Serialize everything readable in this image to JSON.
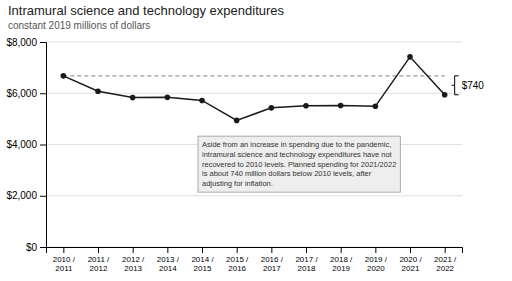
{
  "chart_data": {
    "type": "line",
    "title": "Intramural science and technology expenditures",
    "subtitle": "constant 2019 millions of dollars",
    "categories": [
      "2010 /\n2011",
      "2011 /\n2012",
      "2012 /\n2013",
      "2013 /\n2014",
      "2014 /\n2015",
      "2015 /\n2016",
      "2016 /\n2017",
      "2017 /\n2018",
      "2018 /\n2019",
      "2019 /\n2020",
      "2020 /\n2021",
      "2021 /\n2022"
    ],
    "values": [
      6680,
      6080,
      5830,
      5840,
      5720,
      4940,
      5430,
      5510,
      5520,
      5490,
      7420,
      5940
    ],
    "color": "#1a1a1a",
    "marker": "circle",
    "reference_lines": [
      {
        "value": 6680,
        "color": "#999999",
        "line_style": "dashed"
      }
    ],
    "brace_label": "$740",
    "annotation": "Aside from an increase in spending due to the pandemic,\nintramural science and technology expenditures have not\nrecovered to 2010 levels. Planned spending for 2021/2022\nis about 740 million dollars below 2010 levels, after\nadjusting for inflation.",
    "ylim": [
      0,
      8000
    ],
    "yticks": [
      {
        "value": 0,
        "label": "$0"
      },
      {
        "value": 2000,
        "label": "$2,000"
      },
      {
        "value": 4000,
        "label": "$4,000"
      },
      {
        "value": 6000,
        "label": "$6,000"
      },
      {
        "value": 8000,
        "label": "$8,000"
      }
    ],
    "grid": true
  }
}
